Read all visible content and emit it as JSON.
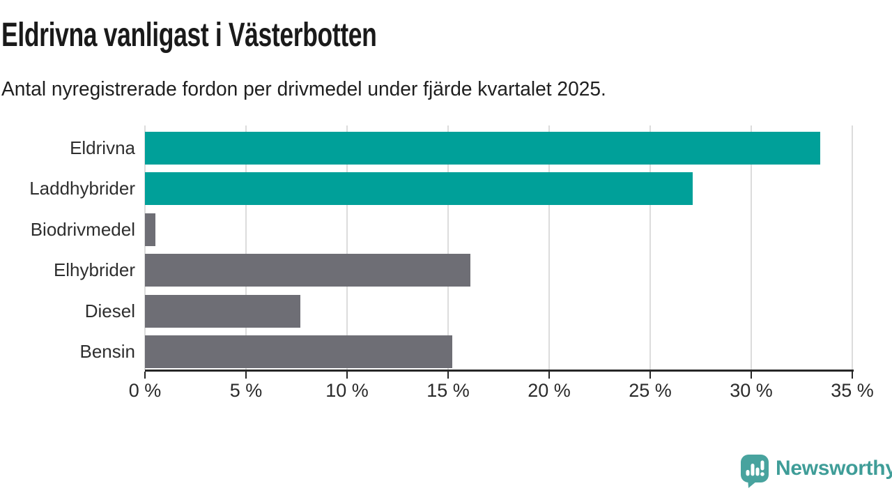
{
  "chart_data": {
    "type": "bar",
    "orientation": "horizontal",
    "title": "Eldrivna vanligast i Västerbotten",
    "subtitle": "Antal nyregistrerade fordon per drivmedel under fjärde kvartalet 2025.",
    "categories": [
      "Eldrivna",
      "Laddhybrider",
      "Biodrivmedel",
      "Elhybrider",
      "Diesel",
      "Bensin"
    ],
    "values": [
      33.4,
      27.1,
      0.5,
      16.1,
      7.7,
      15.2
    ],
    "unit": "%",
    "xlim": [
      0,
      35
    ],
    "x_ticks": [
      0,
      5,
      10,
      15,
      20,
      25,
      30,
      35
    ],
    "x_tick_labels": [
      "0 %",
      "5 %",
      "10 %",
      "15 %",
      "20 %",
      "25 %",
      "30 %",
      "35 %"
    ],
    "bar_colors": [
      "#00a099",
      "#00a099",
      "#6e6e75",
      "#6e6e75",
      "#6e6e75",
      "#6e6e75"
    ],
    "highlight_color": "#00a099",
    "default_color": "#6e6e75",
    "gridline_color": "#dcdcdc",
    "grid": true,
    "legend": "none"
  },
  "branding": {
    "wordmark": "Newsworthy",
    "logo_icon": "speech-bubble-bar-chart-exclamation",
    "brand_color": "#3f9d98",
    "bubble_color": "#48a39e"
  }
}
